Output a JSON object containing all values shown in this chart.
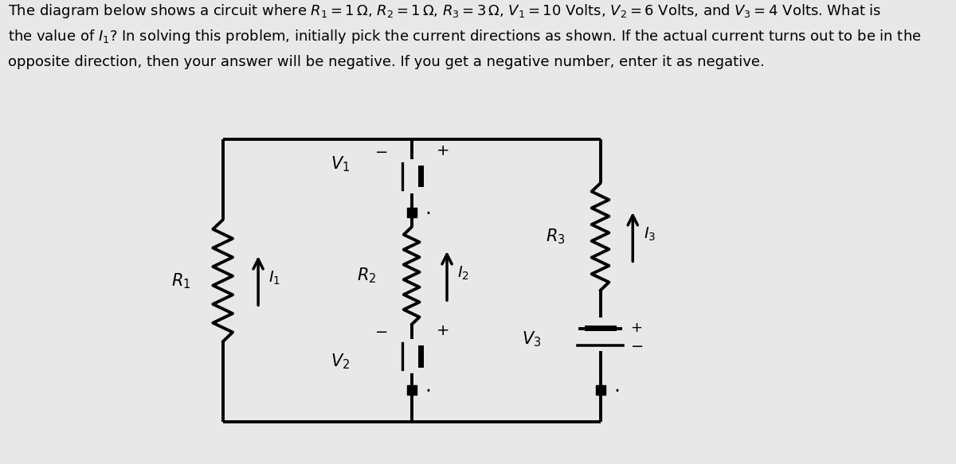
{
  "bg_color": "#e8e8e8",
  "circuit_bg": "#ffffff",
  "text_color": "#000000",
  "line1": "The diagram below shows a circuit where $R_1 = 1\\,\\Omega$, $R_2 = 1\\,\\Omega$, $R_3 = 3\\,\\Omega$, $V_1 = 10$ Volts, $V_2 = 6$ Volts, and $V_3 = 4$ Volts. What is",
  "line2": "the value of $I_1$? In solving this problem, initially pick the current directions as shown. If the actual current turns out to be in the",
  "line3": "opposite direction, then your answer will be negative. If you get a negative number, enter it as negative.",
  "title_fontsize": 13.0,
  "lw": 2.8
}
